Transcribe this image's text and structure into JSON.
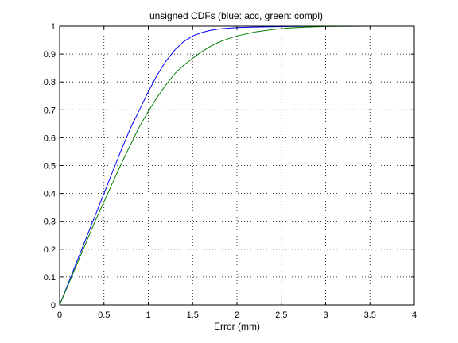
{
  "chart_data": {
    "type": "line",
    "title": "unsigned CDFs (blue: acc, green: compl)",
    "xlabel": "Error (mm)",
    "ylabel": "",
    "xlim": [
      0,
      4
    ],
    "ylim": [
      0,
      1
    ],
    "xticks": [
      0,
      0.5,
      1,
      1.5,
      2,
      2.5,
      3,
      3.5,
      4
    ],
    "yticks": [
      0,
      0.1,
      0.2,
      0.3,
      0.4,
      0.5,
      0.6,
      0.7,
      0.8,
      0.9,
      1
    ],
    "xtick_labels": [
      "0",
      "0.5",
      "1",
      "1.5",
      "2",
      "2.5",
      "3",
      "3.5",
      "4"
    ],
    "ytick_labels": [
      "0",
      "0.1",
      "0.2",
      "0.3",
      "0.4",
      "0.5",
      "0.6",
      "0.7",
      "0.8",
      "0.9",
      "1"
    ],
    "grid": true,
    "series": [
      {
        "color": "#0000ff",
        "x": [
          0,
          0.1,
          0.2,
          0.3,
          0.4,
          0.5,
          0.6,
          0.7,
          0.8,
          0.9,
          1.0,
          1.1,
          1.2,
          1.3,
          1.4,
          1.5,
          1.6,
          1.7,
          1.8,
          1.9,
          2.0,
          2.2,
          2.4,
          2.6,
          2.8,
          3.0,
          3.15
        ],
        "y": [
          0,
          0.08,
          0.16,
          0.24,
          0.32,
          0.4,
          0.48,
          0.56,
          0.635,
          0.7,
          0.765,
          0.825,
          0.875,
          0.915,
          0.945,
          0.965,
          0.977,
          0.985,
          0.99,
          0.993,
          0.995,
          0.997,
          0.998,
          0.999,
          0.9995,
          1.0,
          1.0
        ]
      },
      {
        "color": "#008000",
        "x": [
          0,
          0.1,
          0.2,
          0.3,
          0.4,
          0.5,
          0.6,
          0.7,
          0.8,
          0.9,
          1.0,
          1.1,
          1.2,
          1.3,
          1.4,
          1.5,
          1.6,
          1.7,
          1.8,
          1.9,
          2.0,
          2.2,
          2.4,
          2.6,
          2.8,
          3.0,
          3.5,
          4.0
        ],
        "y": [
          0,
          0.075,
          0.15,
          0.225,
          0.3,
          0.37,
          0.44,
          0.51,
          0.575,
          0.64,
          0.695,
          0.745,
          0.79,
          0.83,
          0.86,
          0.885,
          0.908,
          0.927,
          0.943,
          0.955,
          0.965,
          0.979,
          0.988,
          0.994,
          0.997,
          0.999,
          1.0,
          1.0
        ]
      }
    ]
  }
}
